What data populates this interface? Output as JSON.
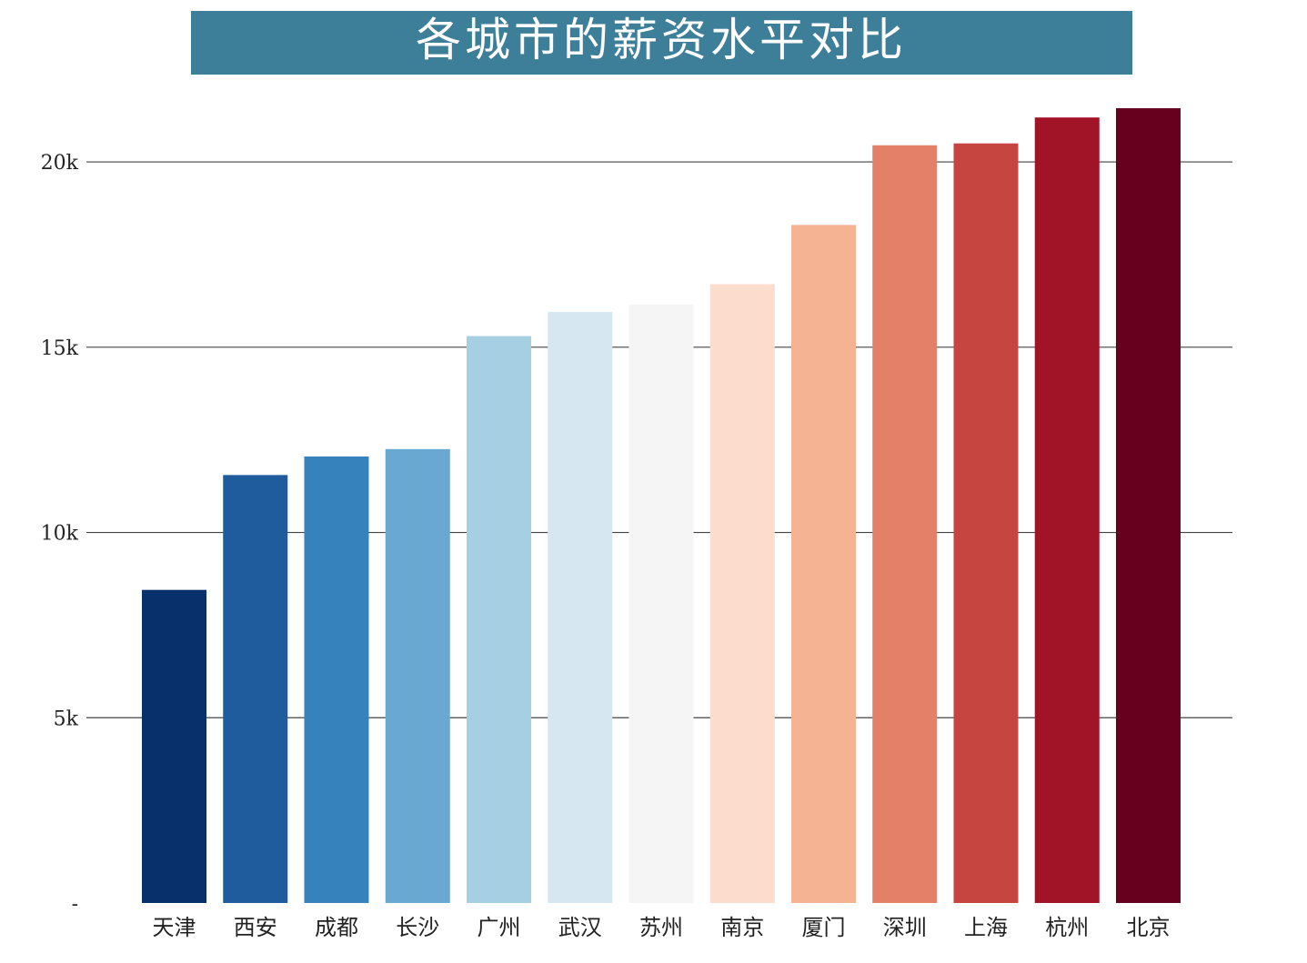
{
  "chart_data": {
    "type": "bar",
    "title": "各城市的薪资水平对比",
    "xlabel": "",
    "ylabel": "",
    "categories": [
      "天津",
      "西安",
      "成都",
      "长沙",
      "广州",
      "武汉",
      "苏州",
      "南京",
      "厦门",
      "深圳",
      "上海",
      "杭州",
      "北京"
    ],
    "values": [
      8450,
      11550,
      12050,
      12250,
      15300,
      15950,
      16150,
      16700,
      18300,
      20450,
      20500,
      21200,
      21450
    ],
    "ylim": [
      0,
      21450
    ],
    "yticks": [
      0,
      5000,
      10000,
      15000,
      20000
    ],
    "ytick_labels": [
      "-",
      "5k",
      "10k",
      "15k",
      "20k"
    ],
    "grid": "horizontal",
    "colormap": "RdBu_r",
    "colors": [
      "#08306b",
      "#1f5c9e",
      "#3682bc",
      "#69a9d1",
      "#a6cfe4",
      "#d6e7f1",
      "#f5f5f5",
      "#fcdccc",
      "#f5b394",
      "#e48067",
      "#c64540",
      "#a11327",
      "#67001f"
    ],
    "title_bg_color": "#3d7e98",
    "grid_color": "#444444"
  }
}
